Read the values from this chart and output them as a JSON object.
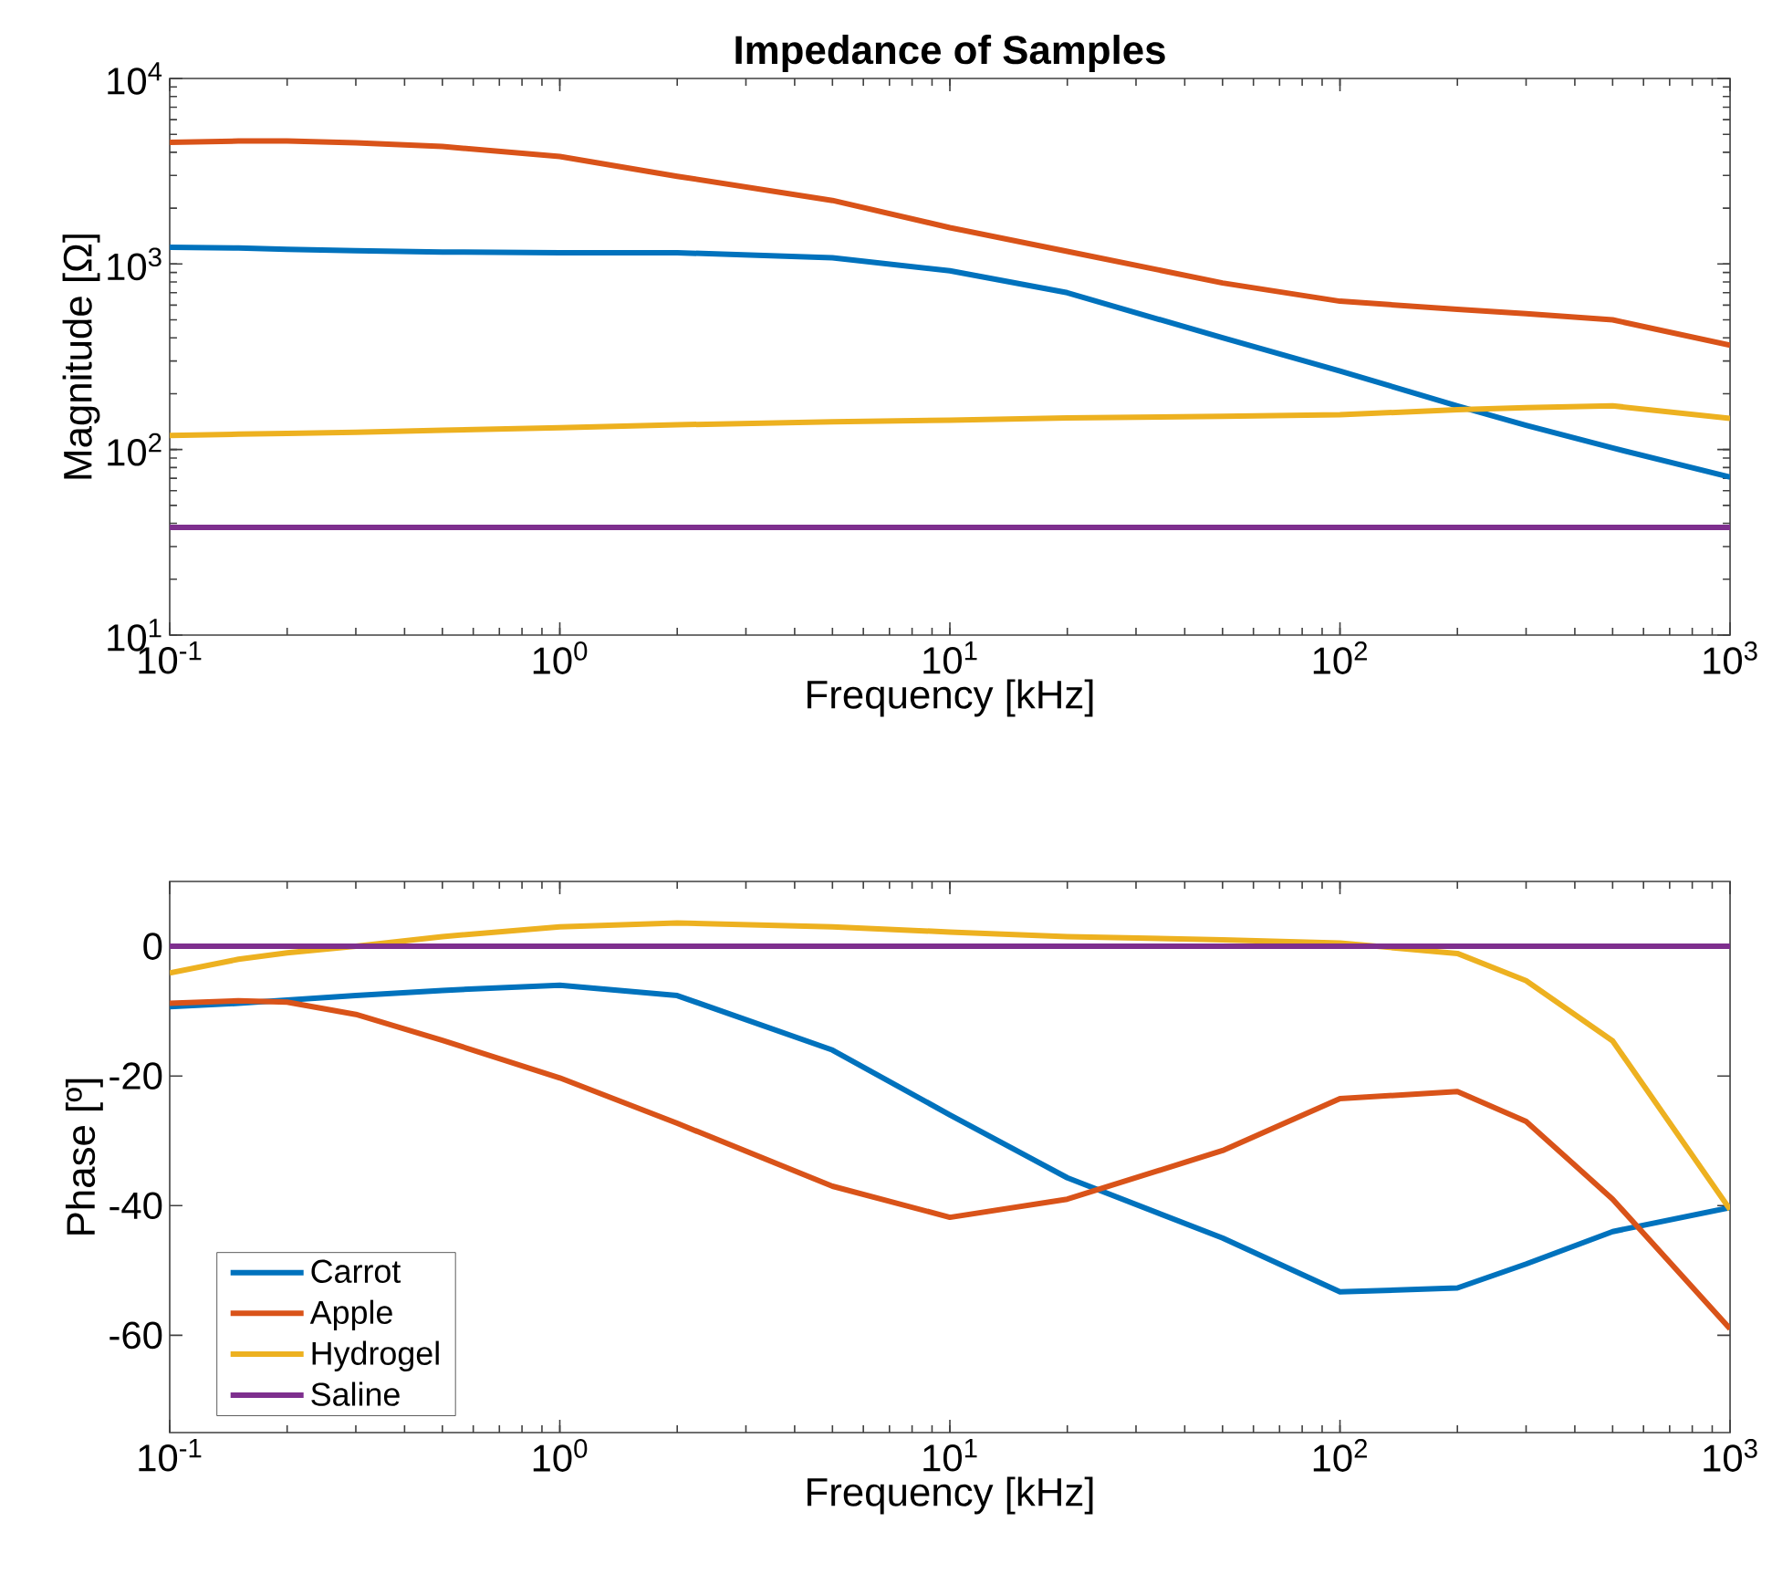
{
  "chart_data": [
    {
      "type": "line",
      "title": "Impedance of Samples",
      "xlabel": "Frequency [kHz]",
      "ylabel": "Magnitude [Ω]",
      "log": "xy",
      "x": [
        0.1,
        0.15,
        0.2,
        0.3,
        0.5,
        1,
        2,
        5,
        10,
        20,
        50,
        100,
        200,
        300,
        500,
        1000
      ],
      "xlim": [
        0.1,
        1000
      ],
      "ylim": [
        10,
        10000
      ],
      "xticks": [
        {
          "value": 0.1,
          "label": "10$^{-1}$"
        },
        {
          "value": 1,
          "label": "10$^{0}$"
        },
        {
          "value": 10,
          "label": "10$^{1}$"
        },
        {
          "value": 100,
          "label": "10$^{2}$"
        },
        {
          "value": 1000,
          "label": "10$^{3}$"
        }
      ],
      "yticks": [
        {
          "value": 10,
          "label": "10$^{1}$"
        },
        {
          "value": 100,
          "label": "10$^{2}$"
        },
        {
          "value": 1000,
          "label": "10$^{3}$"
        },
        {
          "value": 10000,
          "label": "10$^{4}$"
        }
      ],
      "series": [
        {
          "color": "#0072bd",
          "values": [
            1230,
            1220,
            1200,
            1180,
            1160,
            1150,
            1150,
            1080,
            920,
            700,
            400,
            265,
            172,
            135,
            102,
            71
          ]
        },
        {
          "color": "#d95319",
          "values": [
            4530,
            4600,
            4600,
            4500,
            4300,
            3800,
            2970,
            2200,
            1570,
            1170,
            790,
            630,
            570,
            540,
            500,
            365
          ]
        },
        {
          "color": "#edb120",
          "values": [
            119,
            121,
            122,
            124,
            127,
            131,
            136,
            141,
            144,
            148,
            151,
            154,
            164,
            168,
            172,
            147
          ]
        },
        {
          "color": "#7e2f8e",
          "values": [
            38,
            38,
            38,
            38,
            38,
            38,
            38,
            38,
            38,
            38,
            38,
            38,
            38,
            38,
            38,
            38
          ]
        }
      ]
    },
    {
      "type": "line",
      "xlabel": "Frequency [kHz]",
      "ylabel": "Phase [º]",
      "log": "x",
      "legend": "bottom left",
      "x": [
        0.1,
        0.15,
        0.2,
        0.3,
        0.5,
        1,
        2,
        5,
        10,
        20,
        50,
        100,
        200,
        300,
        500,
        1000
      ],
      "xlim": [
        0.1,
        1000
      ],
      "ylim": [
        -75,
        10
      ],
      "xticks": [
        {
          "value": 0.1,
          "label": "10$^{-1}$"
        },
        {
          "value": 1,
          "label": "10$^{0}$"
        },
        {
          "value": 10,
          "label": "10$^{1}$"
        },
        {
          "value": 100,
          "label": "10$^{2}$"
        },
        {
          "value": 1000,
          "label": "10$^{3}$"
        }
      ],
      "yticks": [
        -60,
        -40,
        -20,
        0
      ],
      "series": [
        {
          "name": "Carrot",
          "color": "#0072bd",
          "values": [
            -9.3,
            -8.8,
            -8.3,
            -7.6,
            -6.8,
            -6,
            -7.6,
            -16,
            -26,
            -35.7,
            -45,
            -53.3,
            -52.7,
            -49,
            -44,
            -40.3
          ]
        },
        {
          "name": "Apple",
          "color": "#d95319",
          "values": [
            -8.8,
            -8.4,
            -8.6,
            -10.5,
            -14.5,
            -20.3,
            -27.3,
            -37,
            -41.8,
            -39,
            -31.5,
            -23.5,
            -22.4,
            -27,
            -39,
            -59
          ]
        },
        {
          "name": "Hydrogel",
          "color": "#edb120",
          "values": [
            -4.1,
            -2,
            -1,
            0,
            1.5,
            3,
            3.6,
            3,
            2.2,
            1.5,
            1,
            0.5,
            -1.1,
            -5.3,
            -14.6,
            -40.6
          ]
        },
        {
          "name": "Saline",
          "color": "#7e2f8e",
          "values": [
            0,
            0,
            0,
            0,
            0,
            0,
            0,
            0,
            0,
            0,
            0,
            0,
            0,
            0,
            0,
            0
          ]
        }
      ]
    }
  ]
}
